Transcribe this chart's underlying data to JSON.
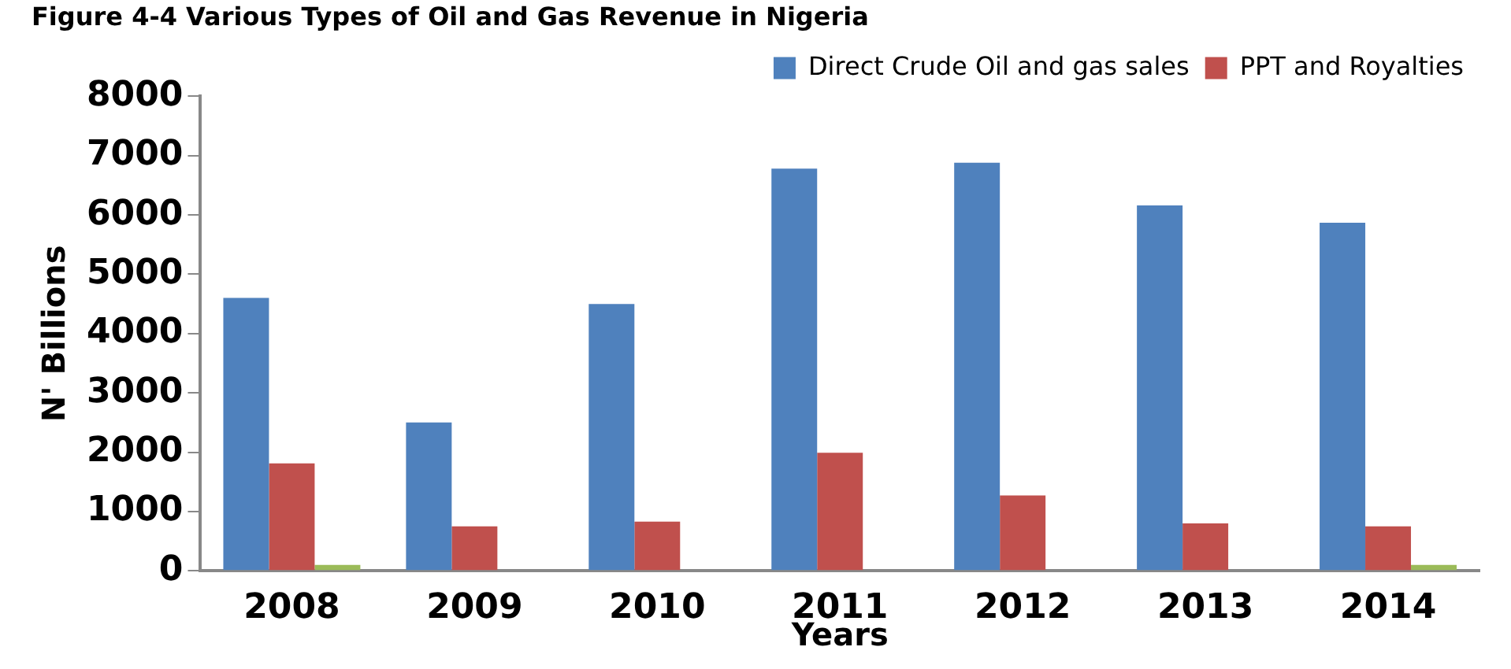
{
  "chart_data": {
    "type": "bar",
    "title": "Figure 4-4 Various Types of Oil and Gas Revenue in Nigeria",
    "xlabel": "Years",
    "ylabel": "N' Billions",
    "categories": [
      "2008",
      "2009",
      "2010",
      "2011",
      "2012",
      "2013",
      "2014"
    ],
    "series": [
      {
        "name": "Direct Crude Oil and gas sales",
        "color": "#4f81bd",
        "values": [
          4600,
          2500,
          4500,
          6780,
          6880,
          6160,
          5870
        ]
      },
      {
        "name": "PPT and Royalties",
        "color": "#c0504d",
        "values": [
          1810,
          750,
          830,
          1990,
          1270,
          800,
          750
        ]
      },
      {
        "color": "#9bbb59",
        "values": [
          100,
          null,
          null,
          null,
          null,
          null,
          100
        ]
      }
    ],
    "ylim": [
      0,
      8000
    ],
    "yticks": [
      0,
      1000,
      2000,
      3000,
      4000,
      5000,
      6000,
      7000,
      8000
    ],
    "grid": false,
    "legend": "top right"
  }
}
